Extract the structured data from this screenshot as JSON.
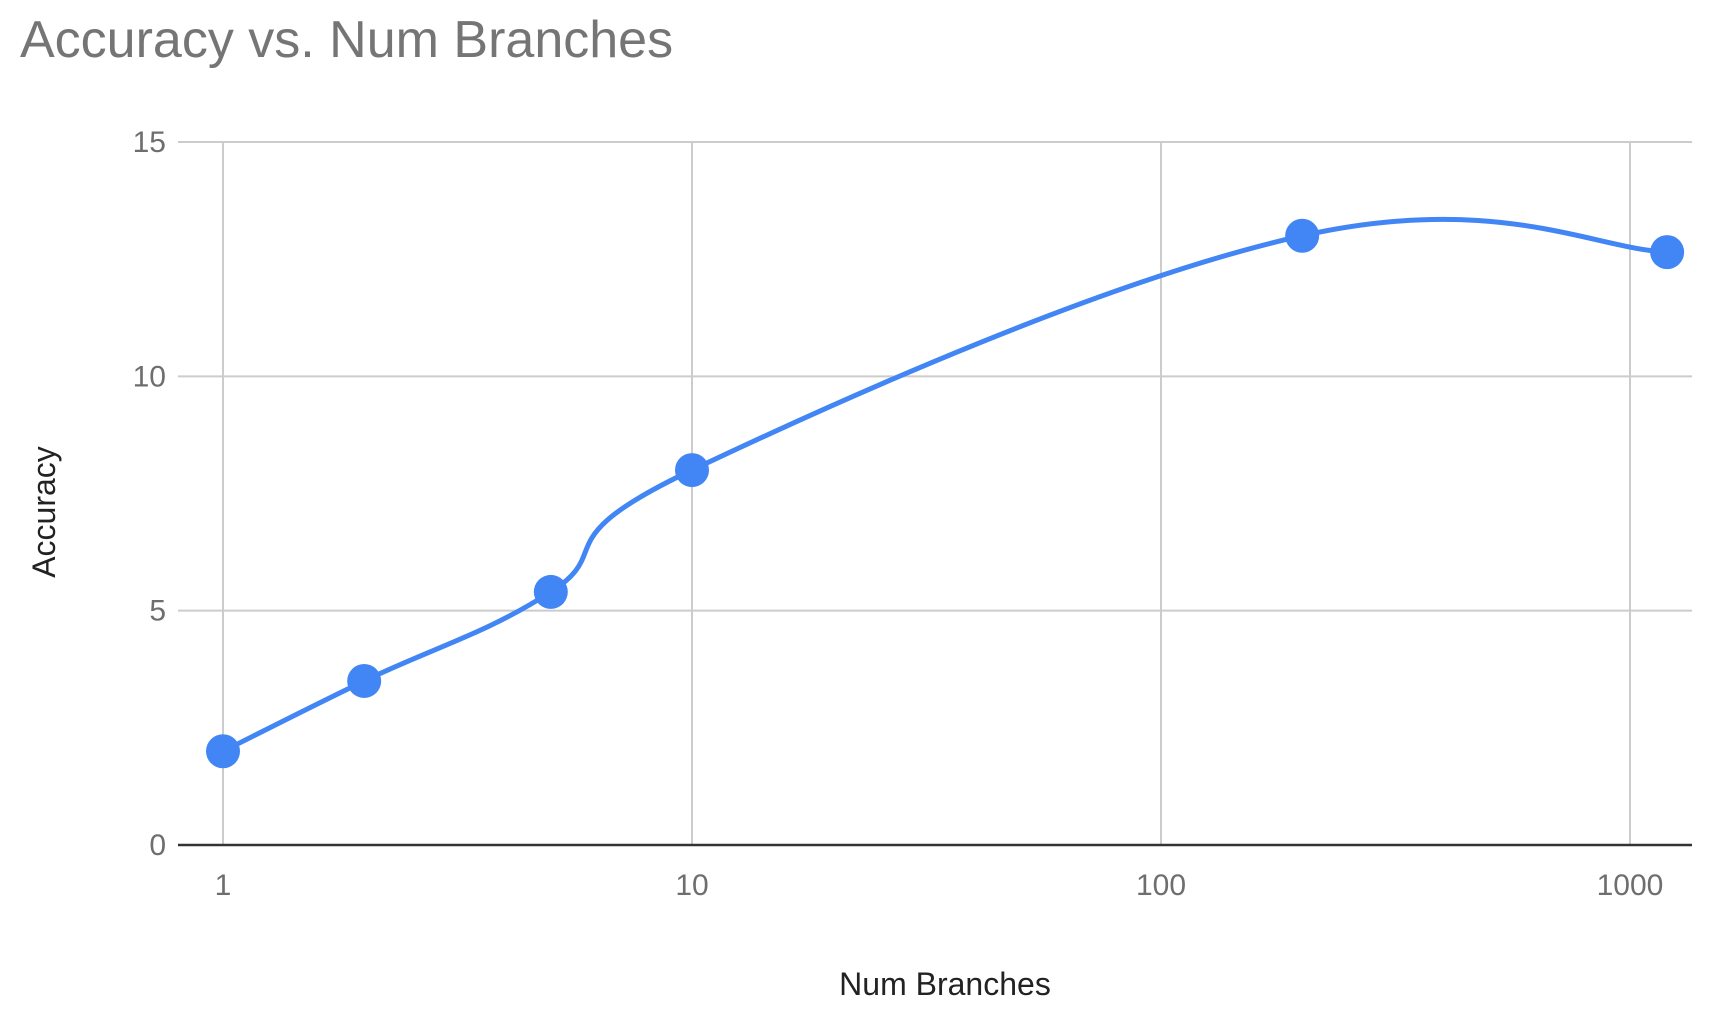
{
  "chart_data": {
    "type": "line",
    "title": "Accuracy vs. Num Branches",
    "xlabel": "Num Branches",
    "ylabel": "Accuracy",
    "xscale": "log",
    "xlim": [
      1,
      1250
    ],
    "ylim": [
      0,
      15
    ],
    "xticks": [
      1,
      10,
      100,
      1000
    ],
    "xtick_labels": [
      "1",
      "10",
      "100",
      "1000"
    ],
    "yticks": [
      0,
      5,
      10,
      15
    ],
    "ytick_labels": [
      "0",
      "5",
      "10",
      "15"
    ],
    "grid": true,
    "smooth": true,
    "series": [
      {
        "x": [
          1,
          2,
          5,
          10,
          200,
          1200
        ],
        "y": [
          2,
          3.5,
          5.4,
          8,
          13,
          12.65
        ],
        "color": "#4285f4"
      }
    ]
  }
}
